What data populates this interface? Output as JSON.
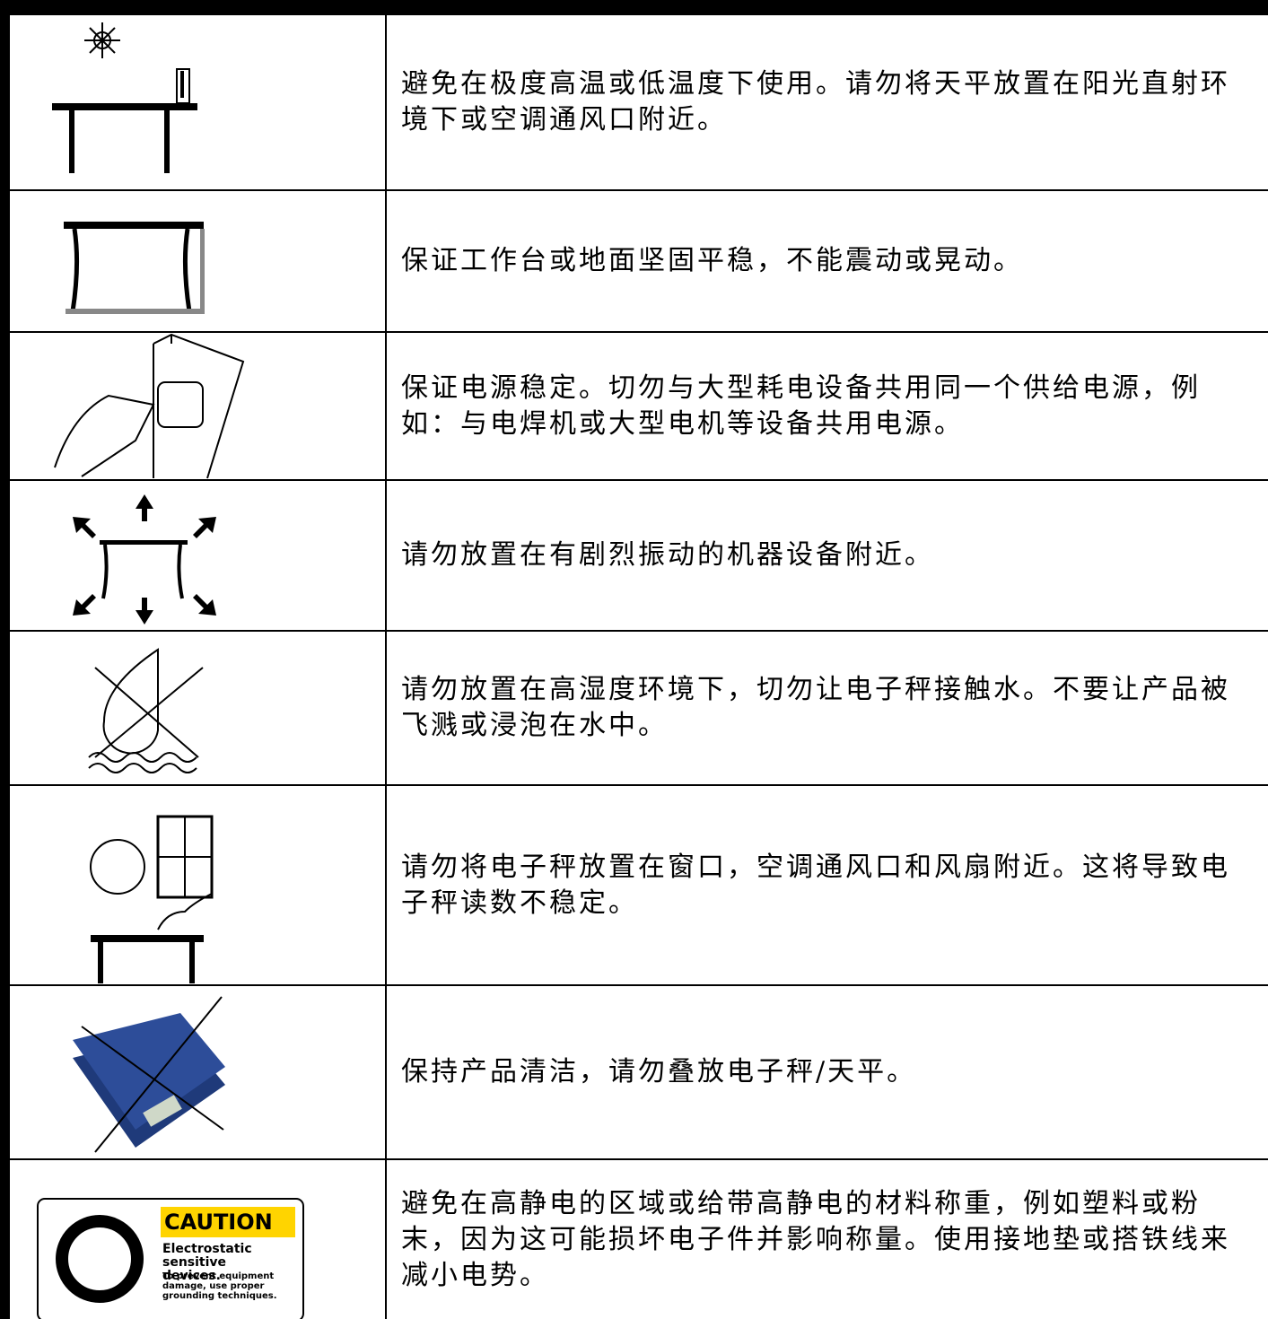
{
  "rows": [
    {
      "text": "避免在极度高温或低温度下使用。请勿将天平放置在阳光直射环境下或空调通风口附近。"
    },
    {
      "text": "保证工作台或地面坚固平稳，不能震动或晃动。"
    },
    {
      "text": "保证电源稳定。切勿与大型耗电设备共用同一个供给电源，例如：与电焊机或大型电机等设备共用电源。"
    },
    {
      "text": "请勿放置在有剧烈振动的机器设备附近。"
    },
    {
      "text": "请勿放置在高湿度环境下，切勿让电子秤接触水。不要让产品被飞溅或浸泡在水中。"
    },
    {
      "text": "请勿将电子秤放置在窗口，空调通风口和风扇附近。这将导致电子秤读数不稳定。"
    },
    {
      "text": "保持产品清洁，请勿叠放电子秤/天平。"
    },
    {
      "text": "避免在高静电的区域或给带高静电的材料称重，例如塑料或粉末，因为这可能损坏电子件并影响称量。使用接地垫或搭铁线来减小电势。"
    }
  ],
  "caution": {
    "title": "CAUTION",
    "heading": "Electrostatic sensitive devices.",
    "body": "To prevent equipment damage, use proper grounding techniques."
  }
}
